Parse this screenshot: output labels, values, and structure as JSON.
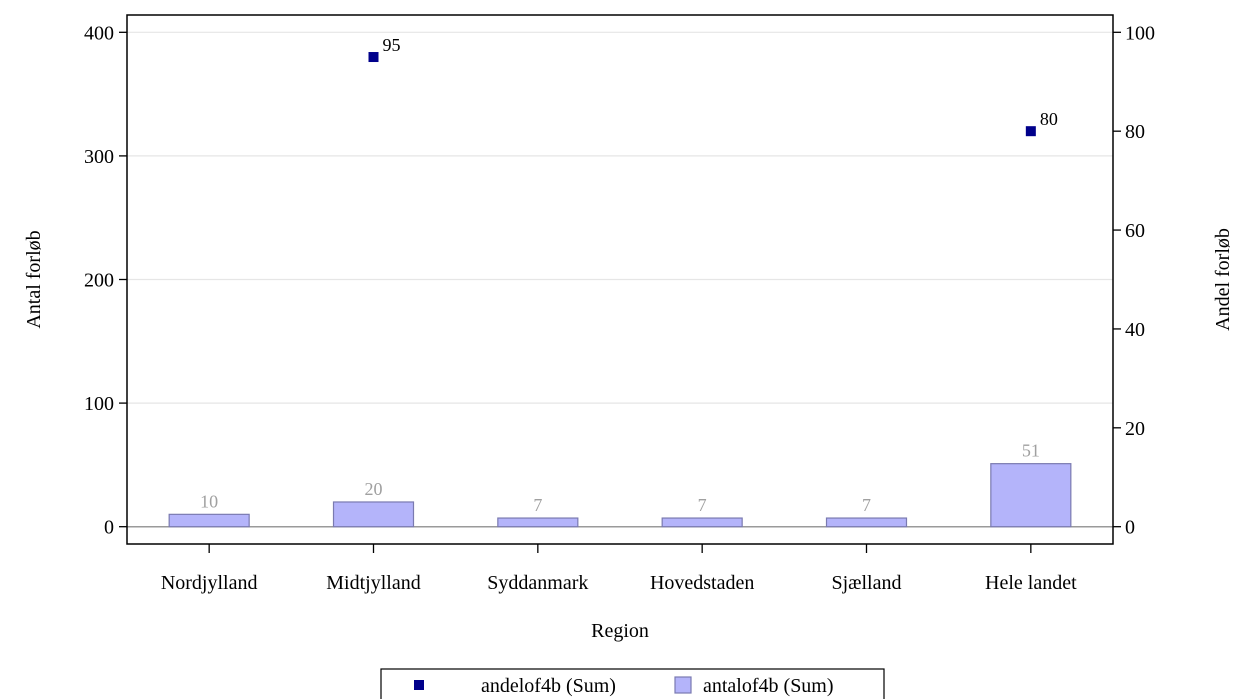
{
  "chart_data": {
    "type": "bar",
    "xlabel": "Region",
    "categories": [
      "Nordjylland",
      "Midtjylland",
      "Syddanmark",
      "Hovedstaden",
      "Sjælland",
      "Hele landet"
    ],
    "y_left": {
      "label": "Antal forløb",
      "ylim": [
        -14,
        414
      ],
      "ticks": [
        0,
        100,
        200,
        300,
        400
      ]
    },
    "y_right": {
      "label": "Andel forløb",
      "ylim": [
        -3.5,
        103.5
      ],
      "ticks": [
        0,
        20,
        40,
        60,
        80,
        100
      ]
    },
    "series": [
      {
        "name": "andelof4b (Sum)",
        "kind": "scatter",
        "axis": "right",
        "color": "#00008b",
        "values": [
          null,
          95,
          null,
          null,
          null,
          80
        ],
        "labels": [
          "",
          "95",
          "",
          "",
          "",
          "80"
        ]
      },
      {
        "name": "antalof4b (Sum)",
        "kind": "bar",
        "axis": "left",
        "color": "#b4b4fa",
        "edge_color": "#7a7ab0",
        "values": [
          10,
          20,
          7,
          7,
          7,
          51
        ],
        "labels": [
          "10",
          "20",
          "7",
          "7",
          "7",
          "51"
        ]
      }
    ],
    "grid": true,
    "legend_position": "bottom"
  }
}
